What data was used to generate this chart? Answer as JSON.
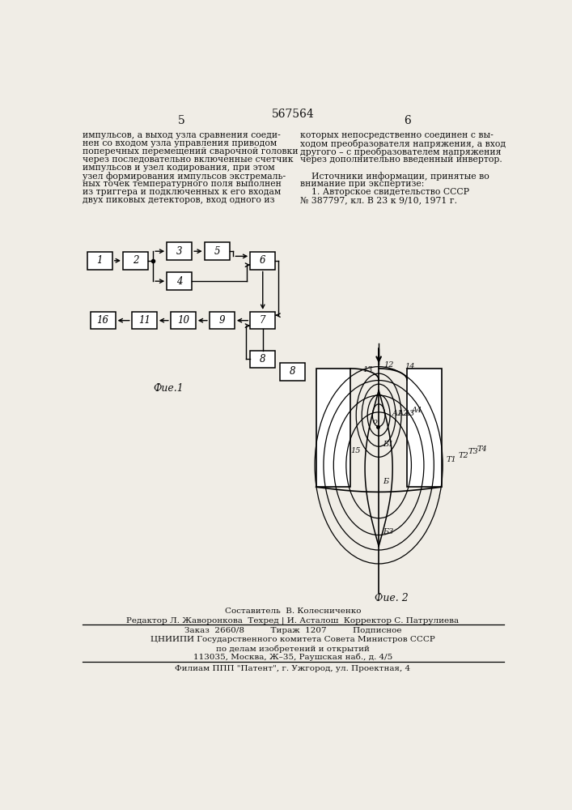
{
  "bg_color": "#f0ede6",
  "page_num_center": "567564",
  "page_num_left": "5",
  "page_num_right": "6",
  "left_col": [
    "импульсов, а выход узла сравнения соеди-",
    "нен со входом узла управления приводом",
    "поперечных перемещений сварочной головки",
    "через последовательно включенные счетчик",
    "импульсов и узел кодирования, при этом",
    "узел формирования импульсов экстремаль-",
    "ных точек температурного поля выполнен",
    "из триггера и подключенных к его входам",
    "двух пиковых детекторов, вход одного из"
  ],
  "right_col": [
    "которых непосредственно соединен с вы-",
    "ходом преобразователя напряжения, а вход",
    "другого – с преобразователем напряжения",
    "через дополнительно введенный инвертор.",
    "",
    "    Источники информации, принятые во",
    "внимание при экспертизе:",
    "    1. Авторское свидетельство СССР",
    "№ 387797, кл. В 23 к 9/10, 1971 г."
  ],
  "fig1_label": "Фие.1",
  "fig2_label": "Фие. 2",
  "footer_composer": "Составитель  В. Колесниченко",
  "footer_editor": "Редактор Л. Жаворонкова  Техред | И. Асталош  Корректор С. Патрулиева",
  "footer_order": "Заказ  2660/8          Тираж  1207          Подписное",
  "footer_org": "ЦНИИПИ Государственного комитета Совета Министров СССР",
  "footer_dept": "по делам изобретений и открытий",
  "footer_addr": "113035, Москва, Ж–35, Раушская наб., д. 4/5",
  "footer_branch": "Филиам ППП \"Патент\", г. Ужгород, ул. Проектная, 4"
}
